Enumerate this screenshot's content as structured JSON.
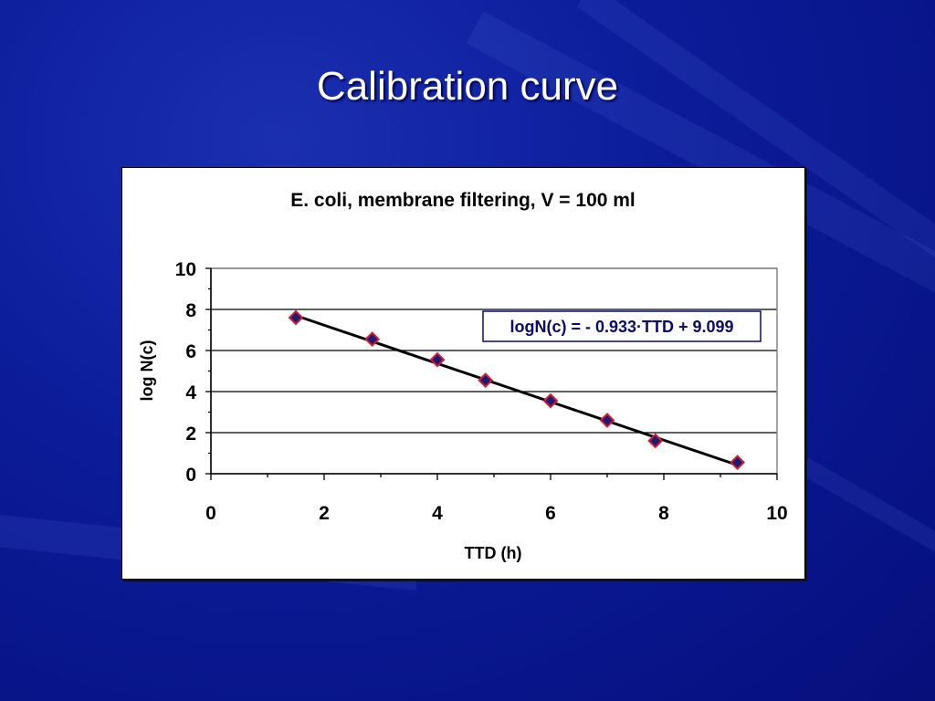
{
  "slide": {
    "title": "Calibration curve"
  },
  "colors": {
    "background": "#0c1d9a",
    "marker_fill": "#1a1a7a",
    "marker_stroke": "#d81b2a",
    "equation_text": "#0a0a6e",
    "trendline": "#000000"
  },
  "chart_data": {
    "type": "scatter",
    "title": "E. coli,  membrane filtering, V = 100 ml",
    "xlabel": "TTD (h)",
    "ylabel": "log N(c)",
    "xlim": [
      0,
      10
    ],
    "ylim": [
      0,
      10
    ],
    "x_ticks": [
      0,
      2,
      4,
      6,
      8,
      10
    ],
    "y_ticks": [
      0,
      2,
      4,
      6,
      8,
      10
    ],
    "x_tick_labels": [
      "0",
      "2",
      "4",
      "6",
      "8",
      "10"
    ],
    "y_tick_labels": [
      "0",
      "2",
      "4",
      "6",
      "8",
      "10"
    ],
    "grid": "horizontal",
    "series": [
      {
        "name": "E. coli",
        "marker": "diamond",
        "x": [
          1.5,
          2.85,
          4.0,
          4.85,
          6.0,
          7.0,
          7.85,
          9.3
        ],
        "y": [
          7.6,
          6.55,
          5.55,
          4.55,
          3.55,
          2.6,
          1.6,
          0.55
        ]
      }
    ],
    "trendline": {
      "slope": -0.933,
      "intercept": 9.099,
      "x_range": [
        1.5,
        9.3
      ],
      "equation": "logN(c) = - 0.933·TTD + 9.099"
    }
  }
}
